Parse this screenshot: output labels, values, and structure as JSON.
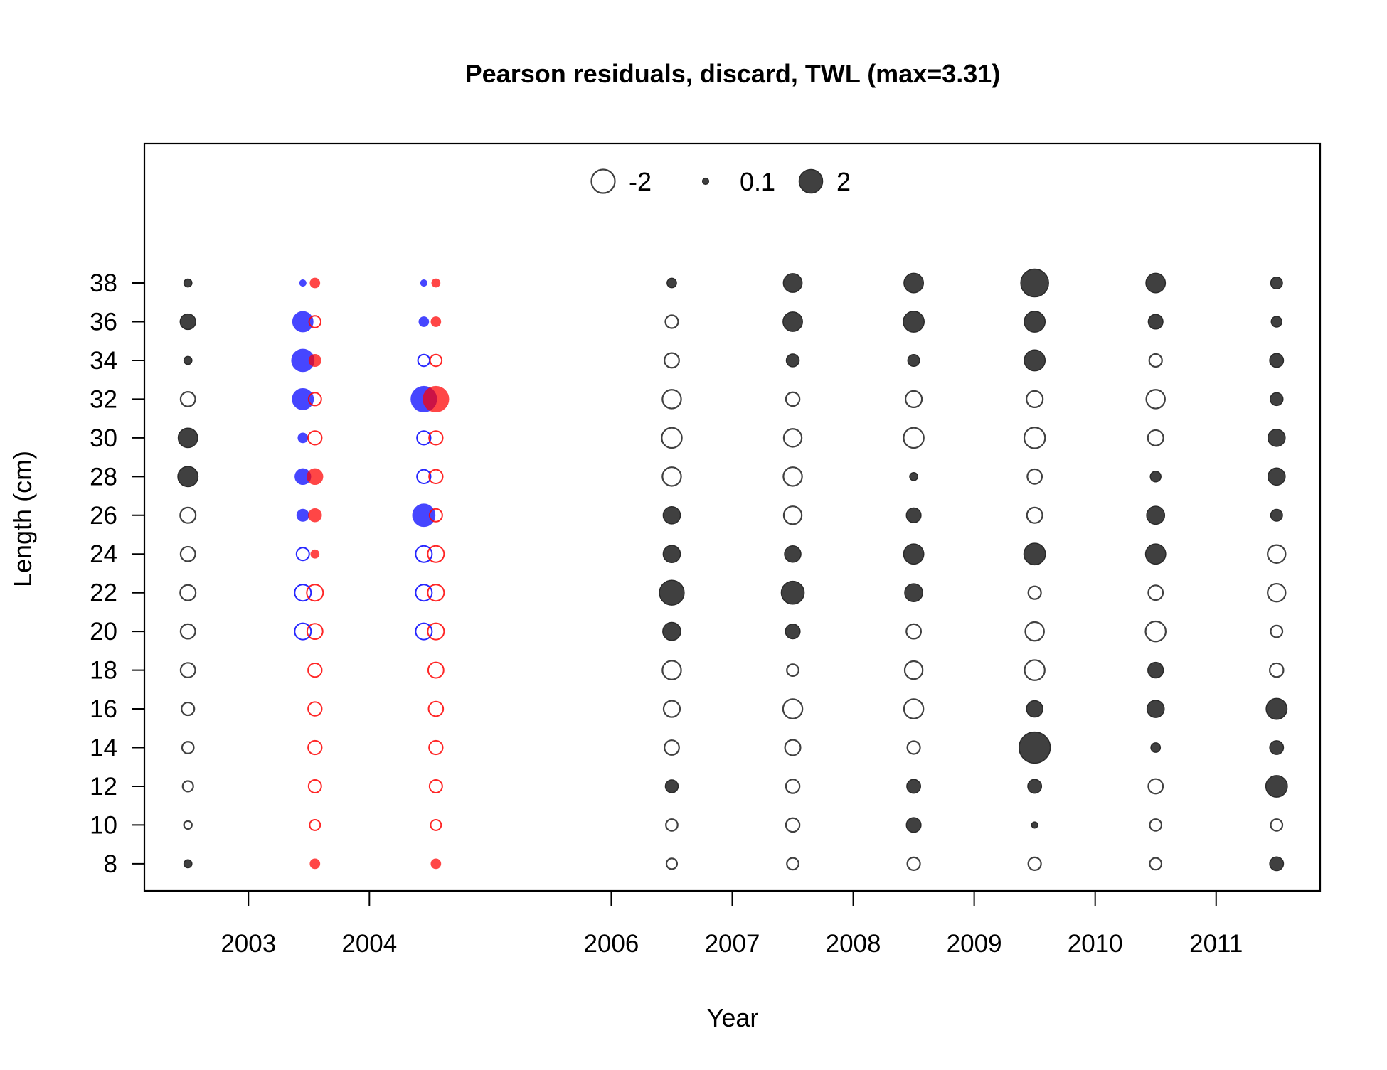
{
  "chart_data": {
    "type": "scatter",
    "subtype": "bubble",
    "title": "Pearson residuals, discard, TWL (max=3.31)",
    "xlabel": "Year",
    "ylabel": "Length (cm)",
    "x_ticks": [
      "2003",
      "2004",
      "2006",
      "2007",
      "2008",
      "2009",
      "2010",
      "2011"
    ],
    "y_ticks": [
      "8",
      "10",
      "12",
      "14",
      "16",
      "18",
      "20",
      "22",
      "24",
      "26",
      "28",
      "30",
      "32",
      "34",
      "36",
      "38"
    ],
    "xlim": [
      2002.14,
      2011.86
    ],
    "ylim": [
      6.6,
      45.2
    ],
    "legend": {
      "position": "top-center",
      "entries": [
        {
          "label": "-2",
          "value": -2
        },
        {
          "label": "0.1",
          "value": 0.1
        },
        {
          "label": "2",
          "value": 2
        }
      ]
    },
    "lengths": [
      8,
      10,
      12,
      14,
      16,
      18,
      20,
      22,
      24,
      26,
      28,
      30,
      32,
      34,
      36,
      38
    ],
    "series": [
      {
        "x": 2002.5,
        "color": "#404040",
        "values": [
          0.2,
          -0.2,
          -0.4,
          -0.5,
          -0.6,
          -0.8,
          -0.8,
          -0.9,
          -0.8,
          -0.9,
          1.5,
          1.4,
          -0.8,
          0.2,
          0.9,
          0.2
        ]
      },
      {
        "x": 2003.45,
        "color": "#0000ff",
        "values": [
          null,
          null,
          null,
          null,
          null,
          null,
          -1.0,
          -1.0,
          -0.6,
          0.5,
          0.9,
          0.3,
          1.6,
          1.8,
          1.5,
          0.1
        ]
      },
      {
        "x": 2003.55,
        "color": "#ff0000",
        "values": [
          0.3,
          -0.4,
          -0.6,
          -0.7,
          -0.7,
          -0.7,
          -0.9,
          -1.0,
          0.2,
          0.6,
          0.9,
          -0.7,
          -0.6,
          0.5,
          -0.5,
          0.3
        ]
      },
      {
        "x": 2004.45,
        "color": "#0000ff",
        "values": [
          null,
          null,
          null,
          null,
          null,
          null,
          -1.0,
          -1.0,
          -1.0,
          1.8,
          -0.7,
          -0.7,
          2.3,
          -0.5,
          0.3,
          0.1
        ]
      },
      {
        "x": 2004.55,
        "color": "#ff0000",
        "values": [
          0.3,
          -0.4,
          -0.6,
          -0.7,
          -0.8,
          -0.9,
          -1.0,
          -1.0,
          -1.0,
          -0.6,
          -0.7,
          -0.7,
          2.3,
          -0.5,
          0.3,
          0.2
        ]
      },
      {
        "x": 2006.5,
        "color": "#404040",
        "values": [
          -0.4,
          -0.5,
          0.6,
          -0.8,
          -1.0,
          -1.3,
          1.2,
          2.2,
          1.1,
          1.1,
          -1.3,
          -1.5,
          -1.3,
          -0.8,
          -0.6,
          0.3
        ]
      },
      {
        "x": 2007.5,
        "color": "#404040",
        "values": [
          -0.5,
          -0.7,
          -0.7,
          -0.9,
          -1.4,
          -0.5,
          0.8,
          1.9,
          1.0,
          -1.2,
          -1.3,
          -1.2,
          -0.7,
          0.6,
          1.4,
          1.3
        ]
      },
      {
        "x": 2008.5,
        "color": "#404040",
        "values": [
          -0.6,
          0.8,
          0.7,
          -0.6,
          -1.4,
          -1.2,
          -0.8,
          1.2,
          1.5,
          0.8,
          0.2,
          -1.5,
          -1.0,
          0.5,
          1.6,
          1.4
        ]
      },
      {
        "x": 2009.5,
        "color": "#404040",
        "values": [
          -0.6,
          0.1,
          0.7,
          3.31,
          1.0,
          -1.5,
          -1.3,
          -0.6,
          1.7,
          -0.9,
          -0.8,
          -1.6,
          -1.0,
          1.6,
          1.6,
          2.7
        ]
      },
      {
        "x": 2010.5,
        "color": "#404040",
        "values": [
          -0.5,
          -0.5,
          -0.8,
          0.3,
          1.1,
          0.9,
          -1.5,
          -0.8,
          1.5,
          1.2,
          0.4,
          -0.9,
          -1.3,
          -0.6,
          0.8,
          1.4
        ]
      },
      {
        "x": 2011.5,
        "color": "#404040",
        "values": [
          0.7,
          -0.5,
          1.7,
          0.7,
          1.6,
          -0.7,
          -0.5,
          -1.2,
          -1.2,
          0.5,
          1.1,
          1.1,
          0.6,
          0.7,
          0.4,
          0.5
        ]
      }
    ]
  }
}
